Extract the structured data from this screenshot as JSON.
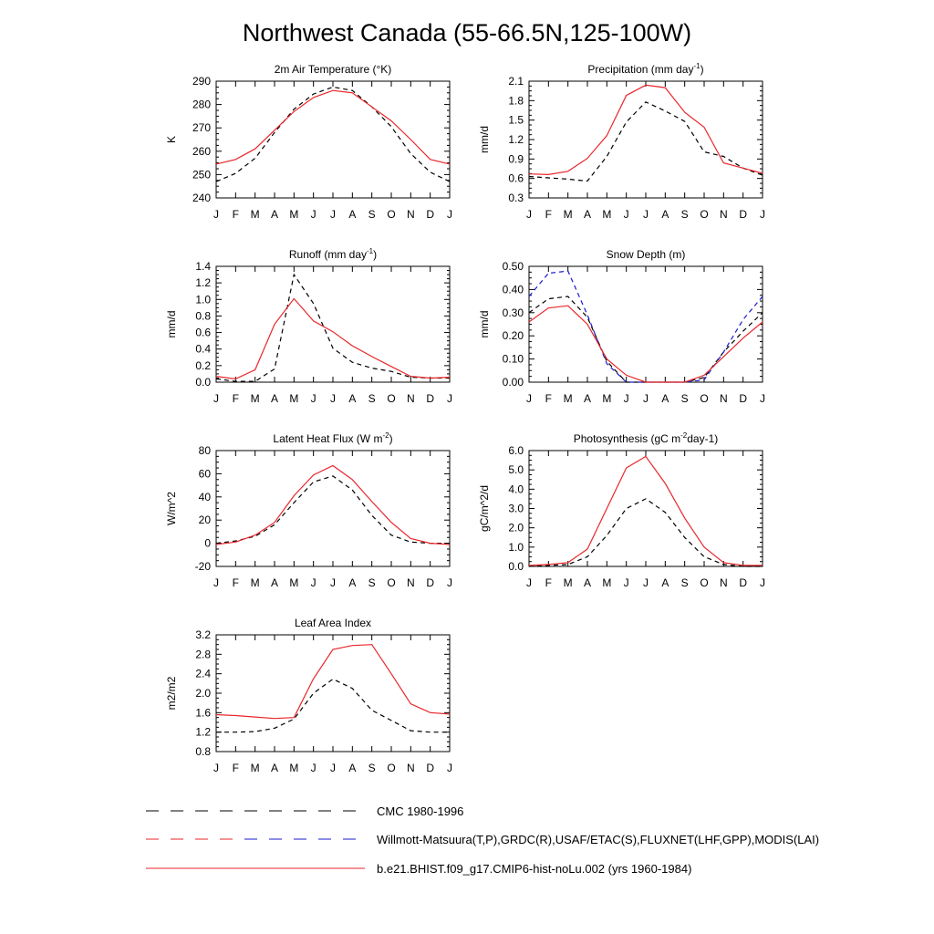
{
  "title": "Northwest Canada (55-66.5N,125-100W)",
  "months": [
    "J",
    "F",
    "M",
    "A",
    "M",
    "J",
    "J",
    "A",
    "S",
    "O",
    "N",
    "D",
    "J"
  ],
  "colors": {
    "model": "#e8262b",
    "obs": "#000000",
    "obs2": "#1a1acc"
  },
  "chart_data": [
    {
      "type": "line",
      "title": "2m Air Temperature (°K)",
      "ylabel": "K",
      "ylim": [
        240,
        290
      ],
      "yticks": [
        "240",
        "250",
        "260",
        "270",
        "280",
        "290"
      ],
      "series": [
        {
          "role": "model",
          "values": [
            254.5,
            256.5,
            261,
            269,
            277,
            283,
            286,
            285,
            279,
            273,
            265,
            256.5,
            254.5
          ]
        },
        {
          "role": "obs",
          "values": [
            247,
            250.5,
            257,
            268,
            278,
            284.5,
            287.5,
            286,
            279,
            270.5,
            259,
            251,
            247
          ]
        }
      ]
    },
    {
      "type": "line",
      "title": "Precipitation (mm day-1)",
      "ylabel": "mm/d",
      "ylim": [
        0.3,
        2.1
      ],
      "yticks": [
        "0.3",
        "0.6",
        "0.9",
        "1.2",
        "1.5",
        "1.8",
        "2.1"
      ],
      "series": [
        {
          "role": "model",
          "values": [
            0.67,
            0.66,
            0.71,
            0.91,
            1.26,
            1.88,
            2.04,
            2.0,
            1.62,
            1.39,
            0.84,
            0.76,
            0.68
          ]
        },
        {
          "role": "obs",
          "values": [
            0.63,
            0.61,
            0.59,
            0.56,
            0.94,
            1.47,
            1.78,
            1.64,
            1.48,
            1.01,
            0.94,
            0.76,
            0.65
          ]
        }
      ]
    },
    {
      "type": "line",
      "title": "Runoff (mm day-1)",
      "ylabel": "mm/d",
      "ylim": [
        0.0,
        1.4
      ],
      "yticks": [
        "0.0",
        "0.2",
        "0.4",
        "0.6",
        "0.8",
        "1.0",
        "1.2",
        "1.4"
      ],
      "series": [
        {
          "role": "model",
          "values": [
            0.07,
            0.04,
            0.15,
            0.7,
            1.01,
            0.74,
            0.61,
            0.44,
            0.31,
            0.19,
            0.07,
            0.05,
            0.06
          ]
        },
        {
          "role": "obs",
          "values": [
            0.04,
            0.01,
            0.01,
            0.16,
            1.3,
            0.95,
            0.41,
            0.24,
            0.17,
            0.13,
            0.06,
            0.05,
            0.05
          ]
        }
      ]
    },
    {
      "type": "line",
      "title": "Snow Depth (m)",
      "ylabel": "mm/d",
      "ylim": [
        0.0,
        0.5
      ],
      "yticks": [
        "0.00",
        "0.10",
        "0.20",
        "0.30",
        "0.40",
        "0.50"
      ],
      "series": [
        {
          "role": "model",
          "values": [
            0.26,
            0.32,
            0.33,
            0.25,
            0.1,
            0.03,
            0.0,
            0.0,
            0.0,
            0.03,
            0.11,
            0.19,
            0.26
          ]
        },
        {
          "role": "obs",
          "values": [
            0.3,
            0.36,
            0.37,
            0.28,
            0.09,
            0.0,
            0.0,
            0.0,
            0.0,
            0.02,
            0.13,
            0.22,
            0.3
          ]
        },
        {
          "role": "obs2",
          "values": [
            0.37,
            0.47,
            0.48,
            0.29,
            0.08,
            0.0,
            0.0,
            0.0,
            0.0,
            0.01,
            0.13,
            0.27,
            0.37
          ]
        }
      ]
    },
    {
      "type": "line",
      "title": "Latent Heat Flux (W m-2)",
      "ylabel": "W/m^2",
      "ylim": [
        -20,
        80
      ],
      "yticks": [
        "-20",
        "0",
        "20",
        "40",
        "60",
        "80"
      ],
      "series": [
        {
          "role": "model",
          "values": [
            -1,
            1,
            7,
            18,
            41,
            59,
            67,
            55,
            36,
            18,
            4,
            0,
            -1
          ]
        },
        {
          "role": "obs",
          "values": [
            0,
            2,
            6,
            16,
            35,
            53,
            58,
            46,
            24,
            7,
            1,
            0,
            0
          ]
        }
      ]
    },
    {
      "type": "line",
      "title": "Photosynthesis (gC m-2day-1)",
      "ylabel": "gC/m^2/d",
      "ylim": [
        0.0,
        6.0
      ],
      "yticks": [
        "0.0",
        "1.0",
        "2.0",
        "3.0",
        "4.0",
        "5.0",
        "6.0"
      ],
      "series": [
        {
          "role": "model",
          "values": [
            0.05,
            0.1,
            0.2,
            0.9,
            3.0,
            5.1,
            5.7,
            4.3,
            2.5,
            1.0,
            0.2,
            0.05,
            0.05
          ]
        },
        {
          "role": "obs",
          "values": [
            0.0,
            0.05,
            0.1,
            0.5,
            1.6,
            3.0,
            3.5,
            2.8,
            1.5,
            0.5,
            0.1,
            0.0,
            0.0
          ]
        }
      ]
    },
    {
      "type": "line",
      "title": "Leaf Area Index",
      "ylabel": "m2/m2",
      "ylim": [
        0.8,
        3.2
      ],
      "yticks": [
        "0.8",
        "1.2",
        "1.6",
        "2.0",
        "2.4",
        "2.8",
        "3.2"
      ],
      "series": [
        {
          "role": "model",
          "values": [
            1.56,
            1.54,
            1.51,
            1.48,
            1.5,
            2.3,
            2.9,
            2.98,
            3.0,
            2.4,
            1.78,
            1.6,
            1.57
          ]
        },
        {
          "role": "obs",
          "values": [
            1.2,
            1.2,
            1.21,
            1.28,
            1.47,
            2.0,
            2.29,
            2.1,
            1.65,
            1.44,
            1.23,
            1.2,
            1.2
          ]
        }
      ]
    }
  ],
  "legend": [
    {
      "role": "obs",
      "label": "CMC 1980-1996"
    },
    {
      "role": "obs_mixed",
      "label": "Willmott-Matsuura(T,P),GRDC(R),USAF/ETAC(S),FLUXNET(LHF,GPP),MODIS(LAI)"
    },
    {
      "role": "model",
      "label": "b.e21.BHIST.f09_g17.CMIP6-hist-noLu.002 (yrs 1960-1984)"
    }
  ]
}
